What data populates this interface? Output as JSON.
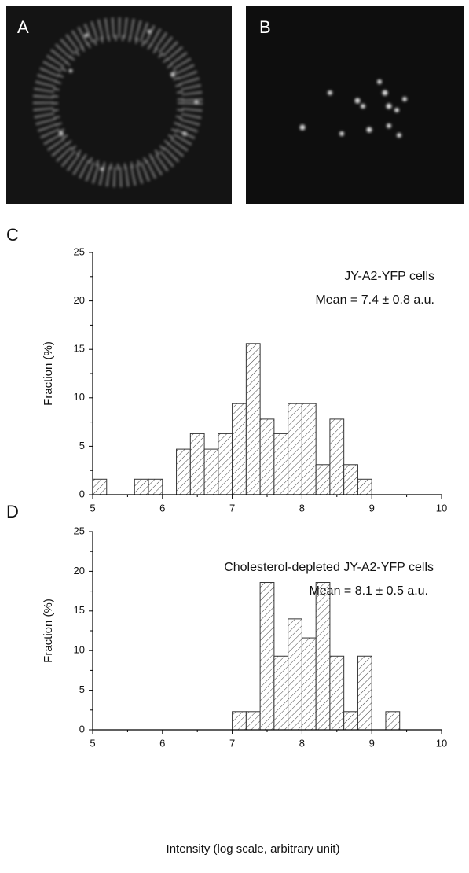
{
  "image_panels": [
    {
      "label": "A"
    },
    {
      "label": "B"
    }
  ],
  "chart_data": [
    {
      "type": "histogram",
      "panel_label": "C",
      "ylabel": "Fraction (%)",
      "annotations": [
        "JY-A2-YFP cells",
        "Mean = 7.4 ± 0.8 a.u."
      ],
      "bins": [
        5.0,
        5.2,
        5.4,
        5.6,
        5.8,
        6.0,
        6.2,
        6.4,
        6.6,
        6.8,
        7.0,
        7.2,
        7.4,
        7.6,
        7.8,
        8.0,
        8.2,
        8.4,
        8.6,
        8.8,
        9.0
      ],
      "values": [
        1.6,
        0,
        0,
        1.6,
        1.6,
        0,
        4.7,
        6.3,
        4.7,
        6.3,
        9.4,
        15.6,
        7.8,
        6.3,
        9.4,
        9.4,
        3.1,
        7.8,
        3.1,
        1.6
      ],
      "color": "#333333",
      "xlim": [
        5,
        10
      ],
      "ylim": [
        0,
        25
      ],
      "xticks": [
        5,
        6,
        7,
        8,
        9,
        10
      ],
      "yticks": [
        0,
        5,
        10,
        15,
        20,
        25
      ]
    },
    {
      "type": "histogram",
      "panel_label": "D",
      "ylabel": "Fraction (%)",
      "xlabel": "Intensity (log scale, arbitrary unit)",
      "annotations": [
        "Cholesterol-depleted JY-A2-YFP cells",
        "Mean = 8.1 ± 0.5 a.u."
      ],
      "bins": [
        7.0,
        7.2,
        7.4,
        7.6,
        7.8,
        8.0,
        8.2,
        8.4,
        8.6,
        8.8,
        9.0,
        9.2,
        9.4
      ],
      "values": [
        2.3,
        2.3,
        18.6,
        9.3,
        14.0,
        11.6,
        18.6,
        9.3,
        2.3,
        9.3,
        0,
        2.3
      ],
      "color": "#333333",
      "xlim": [
        5,
        10
      ],
      "ylim": [
        0,
        25
      ],
      "xticks": [
        5,
        6,
        7,
        8,
        9,
        10
      ],
      "yticks": [
        0,
        5,
        10,
        15,
        20,
        25
      ]
    }
  ]
}
